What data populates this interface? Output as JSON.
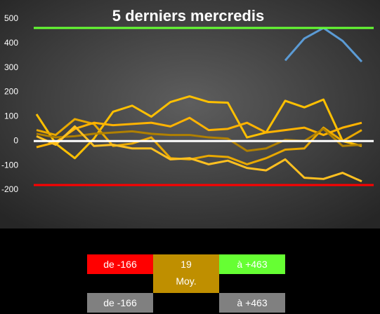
{
  "chart_data": {
    "type": "line",
    "title": "5 derniers mercredis",
    "x": [
      0,
      1,
      2,
      3,
      4,
      5,
      6,
      7,
      8,
      9,
      10,
      11,
      12,
      13,
      14,
      15,
      16,
      17
    ],
    "ylim": [
      -200,
      500
    ],
    "yticks": [
      -200,
      -100,
      0,
      100,
      200,
      300,
      400,
      500
    ],
    "series": [
      {
        "color": "#ffc000",
        "values": [
          110,
          -10,
          -70,
          10,
          120,
          145,
          100,
          160,
          183,
          160,
          157,
          15,
          35,
          165,
          138,
          170,
          0,
          -20
        ]
      },
      {
        "color": "#e8a800",
        "values": [
          45,
          25,
          90,
          70,
          -20,
          -10,
          15,
          -70,
          -75,
          -60,
          -65,
          -95,
          -70,
          -35,
          -30,
          55,
          0,
          45
        ]
      },
      {
        "color": "#ffb300",
        "values": [
          -25,
          -5,
          50,
          75,
          65,
          70,
          75,
          60,
          95,
          45,
          50,
          75,
          35,
          45,
          55,
          25,
          55,
          75
        ]
      },
      {
        "color": "#b08000",
        "values": [
          30,
          15,
          20,
          30,
          35,
          40,
          30,
          25,
          25,
          15,
          10,
          -40,
          -30,
          5,
          0,
          50,
          -20,
          -15
        ]
      },
      {
        "color": "#ffc020",
        "values": [
          20,
          -15,
          60,
          -20,
          -15,
          -30,
          -30,
          -75,
          -70,
          -95,
          -80,
          -110,
          -120,
          -75,
          -150,
          -155,
          -130,
          -165
        ]
      },
      {
        "color": "#5b9bd5",
        "values": [
          null,
          null,
          null,
          null,
          null,
          null,
          null,
          null,
          null,
          null,
          null,
          null,
          null,
          330,
          420,
          463,
          410,
          325
        ]
      }
    ],
    "reference_lines": [
      {
        "value": 463,
        "color": "#66ff33"
      },
      {
        "value": 0,
        "color": "#ffffff"
      },
      {
        "value": -180,
        "color": "#ff0000"
      }
    ]
  },
  "summary": {
    "low": "de -166",
    "average": "19",
    "average_label": "Moy.",
    "high": "à +463",
    "low_gray": "de -166",
    "high_gray": "à +463"
  }
}
